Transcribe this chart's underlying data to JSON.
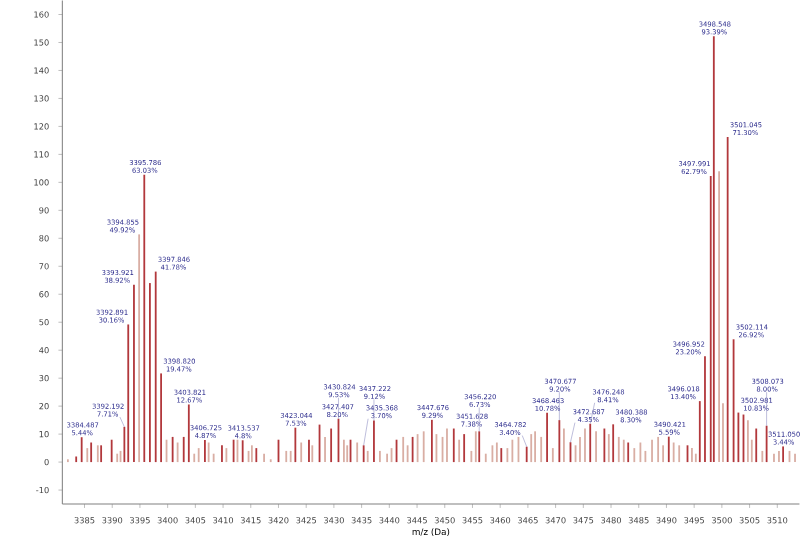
{
  "chart_data": {
    "type": "bar",
    "xlabel": "m/z (Da)",
    "xlim": [
      3381,
      3514
    ],
    "xticks": [
      3385,
      3390,
      3395,
      3400,
      3405,
      3410,
      3415,
      3420,
      3425,
      3430,
      3435,
      3440,
      3445,
      3450,
      3455,
      3460,
      3465,
      3470,
      3475,
      3480,
      3485,
      3490,
      3495,
      3500,
      3505,
      3510
    ],
    "ylim": [
      -15,
      165
    ],
    "yticks": [
      -10,
      0,
      10,
      20,
      30,
      40,
      50,
      60,
      70,
      80,
      90,
      100,
      110,
      120,
      130,
      140,
      150,
      160
    ],
    "series": [
      {
        "color": "#b2383c",
        "x": [
          3383.5,
          3384.487,
          3386.2,
          3388.0,
          3389.9,
          3392.192,
          3392.891,
          3393.921,
          3395.786,
          3396.8,
          3397.846,
          3398.82,
          3400.9,
          3402.9,
          3403.821,
          3406.725,
          3409.8,
          3411.9,
          3413.537,
          3416.0,
          3420.0,
          3423.044,
          3425.5,
          3427.407,
          3429.5,
          3430.824,
          3433.0,
          3435.368,
          3437.222,
          3441.3,
          3444.2,
          3447.676,
          3451.628,
          3453.5,
          3456.22,
          3460.2,
          3464.782,
          3468.463,
          3470.677,
          3472.687,
          3476.248,
          3478.8,
          3480.388,
          3483.1,
          3490.421,
          3493.8,
          3496.018,
          3496.952,
          3497.991,
          3498.548,
          3501.045,
          3502.114,
          3502.981,
          3503.9,
          3506.2,
          3508.073,
          3511.05
        ],
        "values": [
          2,
          8.9,
          7,
          6,
          8,
          12.6,
          49.2,
          63.4,
          102.7,
          64,
          68.1,
          31.7,
          9,
          9,
          20.6,
          7.9,
          6,
          8,
          7.8,
          5,
          8,
          12.3,
          8,
          13.4,
          12,
          15.5,
          8,
          6,
          14.9,
          8,
          9,
          15.1,
          12,
          10,
          11,
          5,
          5.5,
          17.6,
          15,
          7.1,
          13.7,
          12,
          13.5,
          7,
          9.1,
          6,
          21.8,
          37.8,
          102.3,
          152.2,
          116.2,
          43.9,
          17.7,
          17,
          12,
          13,
          5.6
        ]
      },
      {
        "color": "#d9aea4",
        "x": [
          3382.0,
          3385.5,
          3387.4,
          3390.9,
          3391.5,
          3394.855,
          3399.8,
          3401.8,
          3404.8,
          3405.6,
          3407.4,
          3408.3,
          3410.6,
          3412.6,
          3414.6,
          3415.2,
          3417.4,
          3418.6,
          3421.4,
          3422.2,
          3424.1,
          3426.1,
          3428.4,
          3431.8,
          3432.4,
          3434.2,
          3436.1,
          3438.3,
          3439.6,
          3440.4,
          3442.5,
          3443.3,
          3445.1,
          3446.2,
          3448.5,
          3449.6,
          3450.4,
          3452.6,
          3454.8,
          3455.6,
          3457.4,
          3458.6,
          3459.4,
          3461.3,
          3462.2,
          3463.3,
          3465.6,
          3466.3,
          3467.4,
          3469.5,
          3471.5,
          3473.6,
          3474.4,
          3475.3,
          3477.3,
          3479.6,
          3481.4,
          3482.3,
          3484.2,
          3485.3,
          3486.2,
          3487.4,
          3488.5,
          3489.4,
          3491.3,
          3492.3,
          3494.6,
          3495.3,
          3499.5,
          3500.2,
          3504.7,
          3505.4,
          3507.3,
          3509.4,
          3510.3,
          3512.2,
          3513.2
        ],
        "values": [
          1,
          5,
          6,
          3,
          4,
          81.4,
          8,
          7,
          3,
          5,
          7,
          3,
          5,
          8,
          4,
          6,
          3,
          1,
          4,
          4,
          7,
          6,
          9,
          8,
          6,
          7,
          4,
          4,
          3,
          5,
          9,
          6,
          10,
          11,
          10,
          9,
          12,
          8,
          4,
          11,
          3,
          6,
          7,
          5,
          8,
          9,
          10,
          11,
          9,
          5,
          12,
          6,
          9,
          12,
          11,
          10,
          9,
          8,
          5,
          7,
          4,
          8,
          9,
          6,
          7,
          6,
          5,
          3,
          104,
          21,
          15,
          8,
          4,
          3,
          4,
          4,
          3
        ]
      }
    ],
    "annotations": [
      {
        "text": "3384.487 5.44%",
        "x": 3384.487,
        "y": 8.9
      },
      {
        "text": "3392.192 7.71%",
        "x": 3392.192,
        "y": 12.6
      },
      {
        "text": "3392.891 30.16%",
        "x": 3392.891,
        "y": 49.2
      },
      {
        "text": "3393.921 38.92%",
        "x": 3393.921,
        "y": 63.4
      },
      {
        "text": "3394.855 49.92%",
        "x": 3394.855,
        "y": 81.4
      },
      {
        "text": "3395.786 63.03%",
        "x": 3395.786,
        "y": 102.7
      },
      {
        "text": "3397.846 41.78%",
        "x": 3397.846,
        "y": 68.1
      },
      {
        "text": "3398.820 19.47%",
        "x": 3398.82,
        "y": 31.7
      },
      {
        "text": "3403.821 12.67%",
        "x": 3403.821,
        "y": 20.6
      },
      {
        "text": "3406.725 4.87%",
        "x": 3406.725,
        "y": 7.9
      },
      {
        "text": "3413.537 4.8%",
        "x": 3413.537,
        "y": 7.8
      },
      {
        "text": "3423.044 7.53%",
        "x": 3423.044,
        "y": 12.3
      },
      {
        "text": "3427.407 8.20%",
        "x": 3427.407,
        "y": 13.4
      },
      {
        "text": "3430.824 9.53%",
        "x": 3430.824,
        "y": 15.5
      },
      {
        "text": "3435.368 3.70%",
        "x": 3435.368,
        "y": 6
      },
      {
        "text": "3437.222 9.12%",
        "x": 3437.222,
        "y": 14.9
      },
      {
        "text": "3447.676 9.29%",
        "x": 3447.676,
        "y": 15.1
      },
      {
        "text": "3451.628 7.38%",
        "x": 3451.628,
        "y": 12
      },
      {
        "text": "3456.220 6.73%",
        "x": 3456.22,
        "y": 11
      },
      {
        "text": "3464.782 3.40%",
        "x": 3464.782,
        "y": 5.5
      },
      {
        "text": "3468.463 10.78%",
        "x": 3468.463,
        "y": 17.6
      },
      {
        "text": "3470.677 9.20%",
        "x": 3470.677,
        "y": 15
      },
      {
        "text": "3472.687 4.35%",
        "x": 3472.687,
        "y": 7.1
      },
      {
        "text": "3476.248 8.41%",
        "x": 3476.248,
        "y": 13.7
      },
      {
        "text": "3480.388 8.30%",
        "x": 3480.388,
        "y": 13.5
      },
      {
        "text": "3490.421 5.59%",
        "x": 3490.421,
        "y": 9.1
      },
      {
        "text": "3496.018 13.40%",
        "x": 3496.018,
        "y": 21.8
      },
      {
        "text": "3496.952 23.20%",
        "x": 3496.952,
        "y": 37.8
      },
      {
        "text": "3497.991 62.79%",
        "x": 3497.991,
        "y": 102.3
      },
      {
        "text": "3498.548 93.39%",
        "x": 3498.548,
        "y": 152.2
      },
      {
        "text": "3501.045 71.30%",
        "x": 3501.045,
        "y": 116.2
      },
      {
        "text": "3502.114 26.92%",
        "x": 3502.114,
        "y": 43.9
      },
      {
        "text": "3502.981 10.83%",
        "x": 3502.981,
        "y": 17.7
      },
      {
        "text": "3508.073 8.00%",
        "x": 3508.073,
        "y": 13
      },
      {
        "text": "3511.050 3.44%",
        "x": 3511.05,
        "y": 5.6
      }
    ]
  }
}
